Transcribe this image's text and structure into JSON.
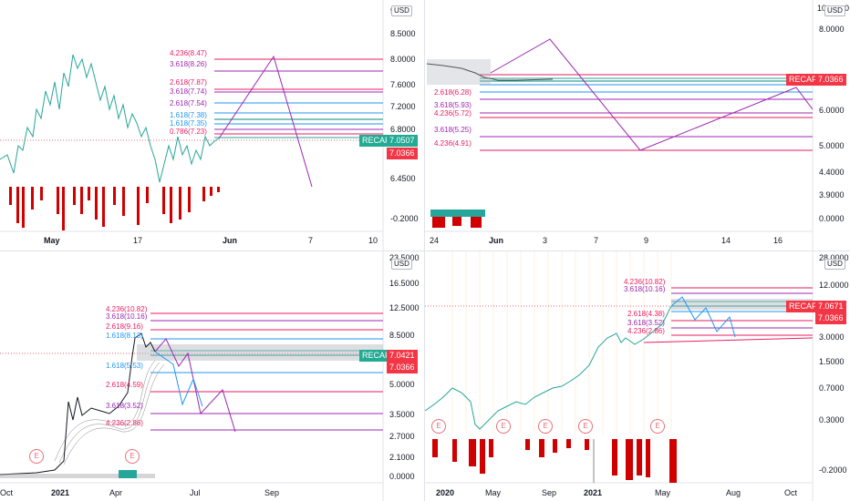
{
  "colors": {
    "up": "#26a69a",
    "down": "#d00000",
    "fib_red": "#e91e63",
    "fib_purple": "#9c27b0",
    "fib_blue": "#2196f3",
    "fib_teal": "#00897b",
    "projection": "#9c27b0",
    "badge_recaf": "#22ab94",
    "badge_red": "#f23645"
  },
  "icons": {
    "earnings": "earnings-E-icon"
  },
  "panes": [
    {
      "id": "top-left",
      "currency": "USD",
      "price_axis": [
        "9.0000",
        "8.5000",
        "8.0000",
        "7.6000",
        "7.2000",
        "6.8000",
        "6.4500",
        "-0.2000"
      ],
      "top_cut": "9",
      "date_axis": [
        "May",
        "17",
        "Jun",
        "7",
        "10"
      ],
      "fib_labels": [
        "4.236(8.47)",
        "3.618(8.26)",
        "2.618(7.87)",
        "3.618(7.74)",
        "2.618(7.54)",
        "1.618(7.38)",
        "1.618(7.35)",
        "0.786(7.23)"
      ],
      "badges": {
        "recaf_label": "RECAF",
        "recaf_price": "7.0507",
        "red_price": "7.0366"
      }
    },
    {
      "id": "top-right",
      "currency": "USD",
      "price_axis": [
        "10",
        "8.0000",
        "7.0000",
        "6.0000",
        "5.0000",
        "4.4000",
        "3.9000",
        "0.0000"
      ],
      "top_cut": "0",
      "date_axis": [
        "24",
        "Jun",
        "3",
        "7",
        "9",
        "14",
        "16"
      ],
      "fib_labels": [
        "2.618(6.28)",
        "3.618(5.93)",
        "4.236(5.72)",
        "3.618(5.25)",
        "4.236(4.91)"
      ],
      "badges": {
        "recaf_label": "RECAF",
        "recaf_price": "7.0366"
      }
    },
    {
      "id": "bottom-left",
      "currency": "USD",
      "price_axis": [
        "23.5000",
        "16.5000",
        "12.5000",
        "8.5000",
        "5.0000",
        "3.5000",
        "2.7000",
        "2.1000",
        "0.0000"
      ],
      "date_axis": [
        "Oct",
        "2021",
        "Apr",
        "Jul",
        "Sep"
      ],
      "fib_labels": [
        "4.236(10.82)",
        "3.618(10.16)",
        "2.618(9.16)",
        "1.618(8.13)",
        "1.618(5.53)",
        "2.618(4.59)",
        "3.618(3.52)",
        "4.236(2.86)"
      ],
      "earnings": [
        "E",
        "E"
      ],
      "badges": {
        "recaf_label": "RECAF",
        "recaf_price": "7.0421",
        "red_price": "7.0366"
      }
    },
    {
      "id": "bottom-right",
      "currency": "USD",
      "price_axis": [
        "28.0000",
        "12.0000",
        "3.0000",
        "1.5000",
        "0.7000",
        "0.3000",
        "-0.2000"
      ],
      "date_axis": [
        "2020",
        "May",
        "Sep",
        "2021",
        "May",
        "Aug",
        "Oct"
      ],
      "fib_labels": [
        "4.236(10.82)",
        "3.618(10.16)",
        "2.618(4.38)",
        "3.618(3.52)",
        "4.236(2.86)"
      ],
      "earnings": [
        "E",
        "E",
        "E",
        "E",
        "E"
      ],
      "badges": {
        "recaf_label": "RECAF",
        "recaf_price": "7.0671",
        "red_price": "7.0366"
      }
    }
  ]
}
